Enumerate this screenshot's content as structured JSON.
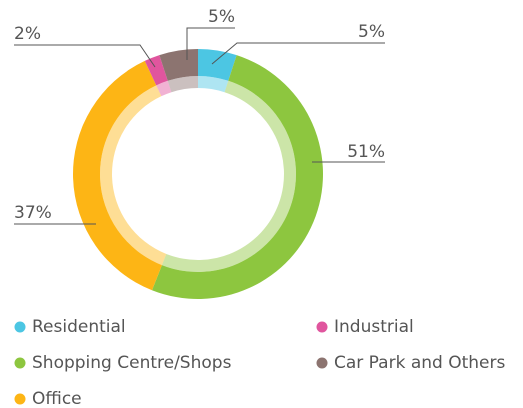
{
  "chart_data": {
    "type": "donut",
    "categories": [
      "Residential",
      "Shopping Centre/Shops",
      "Office",
      "Industrial",
      "Car Park and Others"
    ],
    "values": [
      5,
      51,
      37,
      2,
      5
    ],
    "value_labels": [
      "5%",
      "51%",
      "37%",
      "2%",
      "5%"
    ],
    "colors": [
      "#4cc6e3",
      "#8dc63f",
      "#fdb515",
      "#e0559e",
      "#8c7470"
    ],
    "legend": "bottom"
  }
}
